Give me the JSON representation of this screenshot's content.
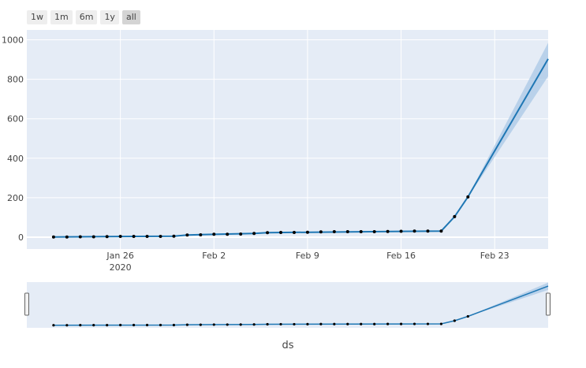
{
  "range_buttons": [
    {
      "label": "1w",
      "active": false
    },
    {
      "label": "1m",
      "active": false
    },
    {
      "label": "6m",
      "active": false
    },
    {
      "label": "1y",
      "active": false
    },
    {
      "label": "all",
      "active": true
    }
  ],
  "chart_data": {
    "type": "line",
    "xlabel": "ds",
    "ylabel": "",
    "ylim": [
      -60,
      1050
    ],
    "xlim": [
      "2020-01-19",
      "2020-02-27"
    ],
    "y_ticks": [
      0,
      200,
      400,
      600,
      800,
      1000
    ],
    "x_ticks": [
      {
        "date": "2020-01-26",
        "label": "Jan 26",
        "sublabel": "2020"
      },
      {
        "date": "2020-02-02",
        "label": "Feb 2",
        "sublabel": ""
      },
      {
        "date": "2020-02-09",
        "label": "Feb 9",
        "sublabel": ""
      },
      {
        "date": "2020-02-16",
        "label": "Feb 16",
        "sublabel": ""
      },
      {
        "date": "2020-02-23",
        "label": "Feb 23",
        "sublabel": ""
      }
    ],
    "grid": true,
    "colors": {
      "forecast": "#1f77b4",
      "band": "#a9c8e6",
      "points": "#000000",
      "plot_bg": "#e5ecf6"
    },
    "observed": [
      {
        "date": "2020-01-21",
        "y": 1
      },
      {
        "date": "2020-01-22",
        "y": 1
      },
      {
        "date": "2020-01-23",
        "y": 2
      },
      {
        "date": "2020-01-24",
        "y": 2
      },
      {
        "date": "2020-01-25",
        "y": 3
      },
      {
        "date": "2020-01-26",
        "y": 4
      },
      {
        "date": "2020-01-27",
        "y": 4
      },
      {
        "date": "2020-01-28",
        "y": 4
      },
      {
        "date": "2020-01-29",
        "y": 4
      },
      {
        "date": "2020-01-30",
        "y": 5
      },
      {
        "date": "2020-01-31",
        "y": 11
      },
      {
        "date": "2020-02-01",
        "y": 12
      },
      {
        "date": "2020-02-02",
        "y": 15
      },
      {
        "date": "2020-02-03",
        "y": 15
      },
      {
        "date": "2020-02-04",
        "y": 16
      },
      {
        "date": "2020-02-05",
        "y": 19
      },
      {
        "date": "2020-02-06",
        "y": 23
      },
      {
        "date": "2020-02-07",
        "y": 24
      },
      {
        "date": "2020-02-08",
        "y": 24
      },
      {
        "date": "2020-02-09",
        "y": 25
      },
      {
        "date": "2020-02-10",
        "y": 27
      },
      {
        "date": "2020-02-11",
        "y": 28
      },
      {
        "date": "2020-02-12",
        "y": 28
      },
      {
        "date": "2020-02-13",
        "y": 28
      },
      {
        "date": "2020-02-14",
        "y": 28
      },
      {
        "date": "2020-02-15",
        "y": 29
      },
      {
        "date": "2020-02-16",
        "y": 30
      },
      {
        "date": "2020-02-17",
        "y": 31
      },
      {
        "date": "2020-02-18",
        "y": 31
      },
      {
        "date": "2020-02-19",
        "y": 31
      },
      {
        "date": "2020-02-20",
        "y": 104
      },
      {
        "date": "2020-02-21",
        "y": 204
      }
    ],
    "forecast": [
      {
        "date": "2020-01-21",
        "yhat": 1,
        "lower": 1,
        "upper": 1
      },
      {
        "date": "2020-01-30",
        "yhat": 5,
        "lower": 4,
        "upper": 6
      },
      {
        "date": "2020-01-31",
        "yhat": 11,
        "lower": 10,
        "upper": 12
      },
      {
        "date": "2020-02-05",
        "yhat": 19,
        "lower": 18,
        "upper": 20
      },
      {
        "date": "2020-02-06",
        "yhat": 23,
        "lower": 22,
        "upper": 24
      },
      {
        "date": "2020-02-19",
        "yhat": 31,
        "lower": 30,
        "upper": 32
      },
      {
        "date": "2020-02-20",
        "yhat": 104,
        "lower": 103,
        "upper": 105
      },
      {
        "date": "2020-02-21",
        "yhat": 204,
        "lower": 202,
        "upper": 206
      },
      {
        "date": "2020-02-27",
        "yhat": 903,
        "lower": 815,
        "upper": 985
      }
    ]
  }
}
